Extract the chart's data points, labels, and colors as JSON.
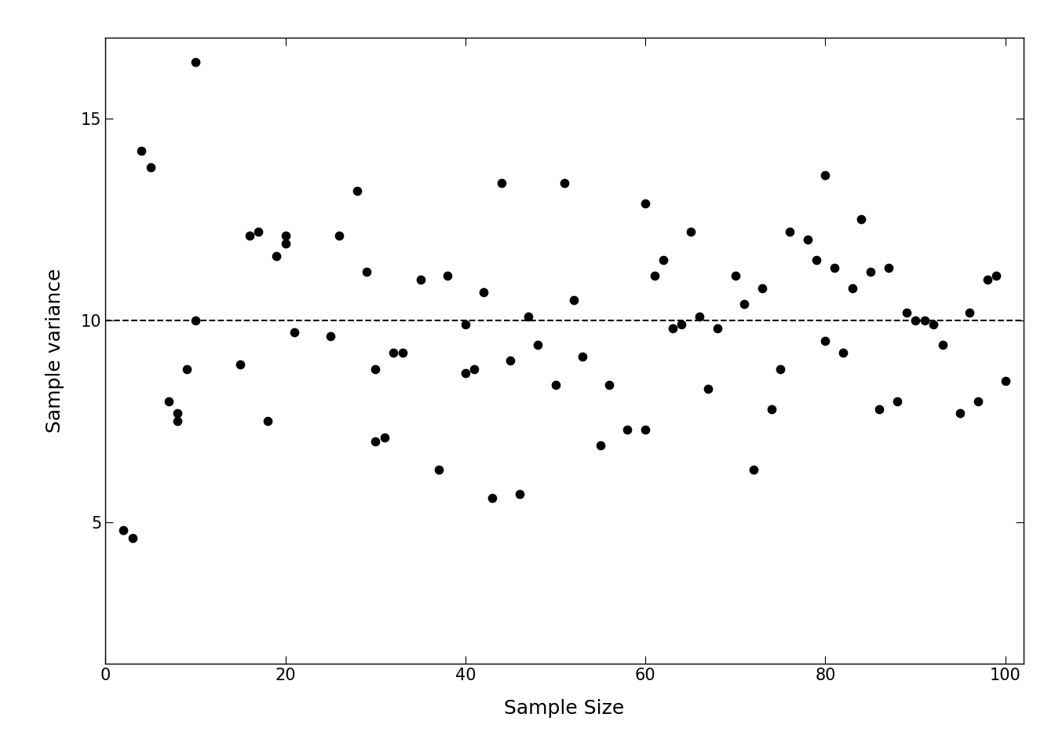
{
  "x": [
    2,
    3,
    4,
    5,
    7,
    8,
    8,
    9,
    10,
    10,
    15,
    16,
    17,
    18,
    19,
    20,
    20,
    21,
    25,
    26,
    28,
    29,
    30,
    30,
    31,
    32,
    33,
    35,
    37,
    38,
    40,
    40,
    41,
    42,
    43,
    44,
    45,
    46,
    47,
    48,
    50,
    51,
    52,
    53,
    55,
    56,
    58,
    60,
    60,
    61,
    62,
    63,
    64,
    65,
    66,
    67,
    68,
    70,
    71,
    72,
    73,
    74,
    75,
    76,
    78,
    79,
    80,
    80,
    81,
    82,
    83,
    84,
    85,
    86,
    87,
    88,
    89,
    90,
    91,
    92,
    93,
    95,
    96,
    97,
    98,
    99,
    100
  ],
  "y": [
    4.8,
    4.6,
    14.2,
    13.8,
    8.0,
    7.7,
    7.5,
    8.8,
    10.0,
    16.4,
    8.9,
    12.1,
    12.2,
    7.5,
    11.6,
    12.1,
    11.9,
    9.7,
    9.6,
    12.1,
    13.2,
    11.2,
    7.0,
    8.8,
    7.1,
    9.2,
    9.2,
    11.0,
    6.3,
    11.1,
    9.9,
    8.7,
    8.8,
    10.7,
    5.6,
    13.4,
    9.0,
    5.7,
    10.1,
    9.4,
    8.4,
    13.4,
    10.5,
    9.1,
    6.9,
    8.4,
    7.3,
    7.3,
    12.9,
    11.1,
    11.5,
    9.8,
    9.9,
    12.2,
    10.1,
    8.3,
    9.8,
    11.1,
    10.4,
    6.3,
    10.8,
    7.8,
    8.8,
    12.2,
    12.0,
    11.5,
    9.5,
    13.6,
    11.3,
    9.2,
    10.8,
    12.5,
    11.2,
    7.8,
    11.3,
    8.0,
    10.2,
    10.0,
    10.0,
    9.9,
    9.4,
    7.7,
    10.2,
    8.0,
    11.0,
    11.1,
    8.5
  ],
  "dashed_y": 10.0,
  "xlim": [
    0,
    102
  ],
  "ylim": [
    1.5,
    17.0
  ],
  "yticks": [
    5,
    10,
    15
  ],
  "xticks": [
    0,
    20,
    40,
    60,
    80,
    100
  ],
  "xlabel": "Sample Size",
  "ylabel": "Sample variance",
  "marker_size": 55,
  "marker_color": "black",
  "background_color": "white",
  "dashed_color": "black",
  "title_fontsize": 16,
  "axis_fontsize": 18,
  "tick_fontsize": 15
}
